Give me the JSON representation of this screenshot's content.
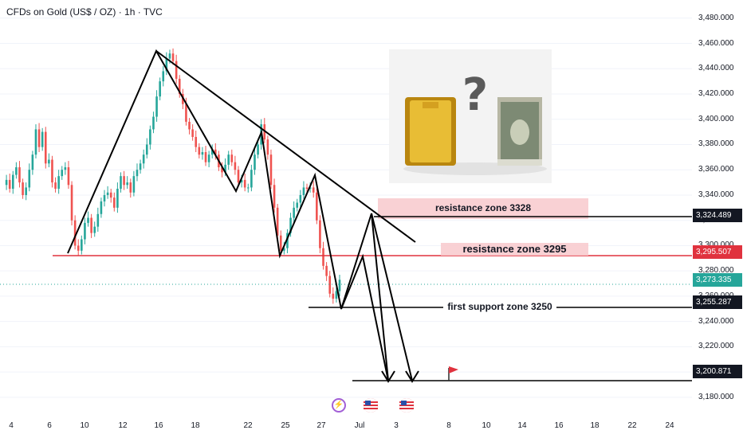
{
  "header": {
    "title": "CFDs on Gold (US$ / OZ) · 1h · TVC"
  },
  "chart_data": {
    "type": "candlestick",
    "title": "CFDs on Gold (US$ / OZ) · 1h · TVC",
    "y_axis_ticks": [
      "3,480.000",
      "3,460.000",
      "3,440.000",
      "3,420.000",
      "3,400.000",
      "3,380.000",
      "3,360.000",
      "3,340.000",
      "3,320.000",
      "3,300.000",
      "3,280.000",
      "3,260.000",
      "3,240.000",
      "3,220.000",
      "3,200.000",
      "3,180.000"
    ],
    "x_axis_ticks": [
      "4",
      "6",
      "10",
      "12",
      "16",
      "18",
      "22",
      "25",
      "27",
      "Jul",
      "3",
      "8",
      "10",
      "14",
      "16",
      "18",
      "22",
      "24"
    ],
    "ylim": [
      3173,
      3483
    ],
    "price_series_points": [
      3348,
      3352,
      3345,
      3356,
      3362,
      3350,
      3340,
      3346,
      3360,
      3372,
      3392,
      3378,
      3390,
      3365,
      3368,
      3350,
      3345,
      3355,
      3360,
      3362,
      3348,
      3320,
      3300,
      3296,
      3305,
      3318,
      3322,
      3310,
      3315,
      3325,
      3335,
      3340,
      3342,
      3338,
      3330,
      3345,
      3355,
      3348,
      3350,
      3342,
      3355,
      3360,
      3365,
      3372,
      3380,
      3392,
      3402,
      3418,
      3430,
      3438,
      3448,
      3452,
      3446,
      3432,
      3420,
      3412,
      3398,
      3392,
      3386,
      3378,
      3372,
      3374,
      3366,
      3372,
      3376,
      3372,
      3362,
      3358,
      3364,
      3372,
      3366,
      3360,
      3350,
      3352,
      3346,
      3346,
      3360,
      3372,
      3380,
      3396,
      3384,
      3372,
      3348,
      3330,
      3308,
      3296,
      3298,
      3310,
      3322,
      3330,
      3334,
      3340,
      3346,
      3345,
      3346,
      3342,
      3320,
      3298,
      3284,
      3276,
      3262,
      3258,
      3264,
      3273
    ],
    "price_labels": [
      {
        "value": 3324.489,
        "text": "3,324.489",
        "color": "#131722"
      },
      {
        "value": 3295.507,
        "text": "3,295.507",
        "color": "#e0323e"
      },
      {
        "value": 3273.335,
        "text": "3,273.335",
        "color": "#26a69a"
      },
      {
        "value": 3255.287,
        "text": "3,255.287",
        "color": "#131722"
      },
      {
        "value": 3200.871,
        "text": "3,200.871",
        "color": "#131722"
      }
    ],
    "annotations": [
      {
        "text": "resistance zone 3328",
        "value": 3328
      },
      {
        "text": "resistance zone 3295",
        "value": 3295
      },
      {
        "text": "first support zone 3250",
        "value": 3255
      }
    ],
    "last_price": 3273.335
  },
  "image_note": {
    "symbol": "?"
  },
  "colors": {
    "up": "#26a69a",
    "down": "#ef5350",
    "resistance": "#e0323e",
    "zone_fill": "#f8c9cc",
    "grid": "#f0f3fa"
  },
  "events": [
    {
      "icon": "lightning-icon"
    },
    {
      "icon": "us-flag-icon"
    },
    {
      "icon": "us-flag-icon"
    }
  ]
}
